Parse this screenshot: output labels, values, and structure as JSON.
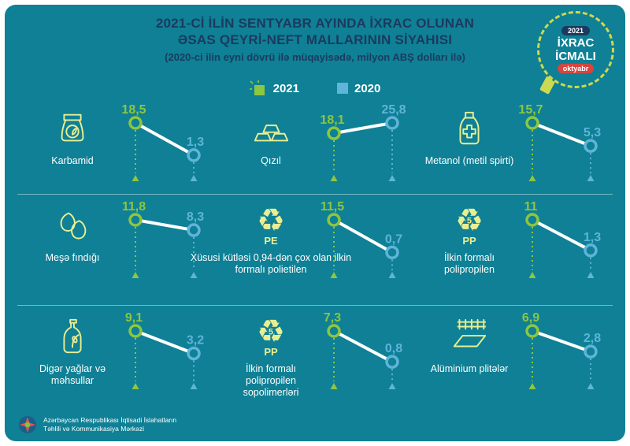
{
  "title": {
    "line1": "2021-Cİ İLİN SENTYABR AYINDA İXRAC OLUNAN",
    "line2": "ƏSAS QEYRİ-NEFT MALLARININ SİYAHISI",
    "line3": "(2020-ci ilin eyni dövrü ilə müqayisədə, milyon ABŞ dolları ilə)"
  },
  "badge": {
    "year": "2021",
    "title_line1": "İXRAC",
    "title_line2": "İCMALI",
    "month": "oktyabr"
  },
  "legend": {
    "items": [
      {
        "label": "2021"
      },
      {
        "label": "2020"
      }
    ]
  },
  "icons": {
    "recycle_glyph": "♻"
  },
  "colors": {
    "background": "#0f8095",
    "green": "#8dc63f",
    "blue": "#5fb4d9",
    "icon_yellow": "#e9ee92",
    "title_navy": "#1b3a5f",
    "badge_red": "#d64541"
  },
  "footer": {
    "org_line1": "Azərbaycan Respublikası İqtisadi İslahatların",
    "org_line2": "Təhlili və Kommunikasiya Mərkəzi"
  },
  "chart_data": {
    "type": "line",
    "subtype": "slope-pairs",
    "unit": "milyon ABŞ dolları",
    "series_labels": [
      "2021",
      "2020"
    ],
    "items": [
      {
        "name": "Karbamid",
        "value_2021": 18.5,
        "value_2020": 1.3,
        "label_2021": "18,5",
        "label_2020": "1,3",
        "icon": "fertilizer-bag"
      },
      {
        "name": "Qızıl",
        "value_2021": 18.1,
        "value_2020": 25.8,
        "label_2021": "18,1",
        "label_2020": "25,8",
        "icon": "gold-bars"
      },
      {
        "name": "Metanol (metil spirti)",
        "value_2021": 15.7,
        "value_2020": 5.3,
        "label_2021": "15,7",
        "label_2020": "5,3",
        "icon": "methanol-bottle"
      },
      {
        "name": "Meşə fındığı",
        "value_2021": 11.8,
        "value_2020": 8.3,
        "label_2021": "11,8",
        "label_2020": "8,3",
        "icon": "hazelnut"
      },
      {
        "name": "Xüsusi kütləsi 0,94-dən çox olan ilkin formalı polietilen",
        "value_2021": 11.5,
        "value_2020": 0.7,
        "label_2021": "11,5",
        "label_2020": "0,7",
        "icon": "recycle",
        "icon_code": "PE",
        "icon_num": ""
      },
      {
        "name": "İlkin formalı polipropilen",
        "value_2021": 11,
        "value_2020": 1.3,
        "label_2021": "11",
        "label_2020": "1,3",
        "icon": "recycle",
        "icon_code": "PP",
        "icon_num": "5"
      },
      {
        "name": "Digər yağlar və məhsullar",
        "value_2021": 9.1,
        "value_2020": 3.2,
        "label_2021": "9,1",
        "label_2020": "3,2",
        "icon": "oil-bottle"
      },
      {
        "name": "İlkin formalı polipropilen sopolimerləri",
        "value_2021": 7.3,
        "value_2020": 0.8,
        "label_2021": "7,3",
        "label_2020": "0,8",
        "icon": "recycle",
        "icon_code": "PP",
        "icon_num": "5"
      },
      {
        "name": "Alüminium plitələr",
        "value_2021": 6.9,
        "value_2020": 2.8,
        "label_2021": "6,9",
        "label_2020": "2,8",
        "icon": "aluminium-plates"
      }
    ]
  }
}
